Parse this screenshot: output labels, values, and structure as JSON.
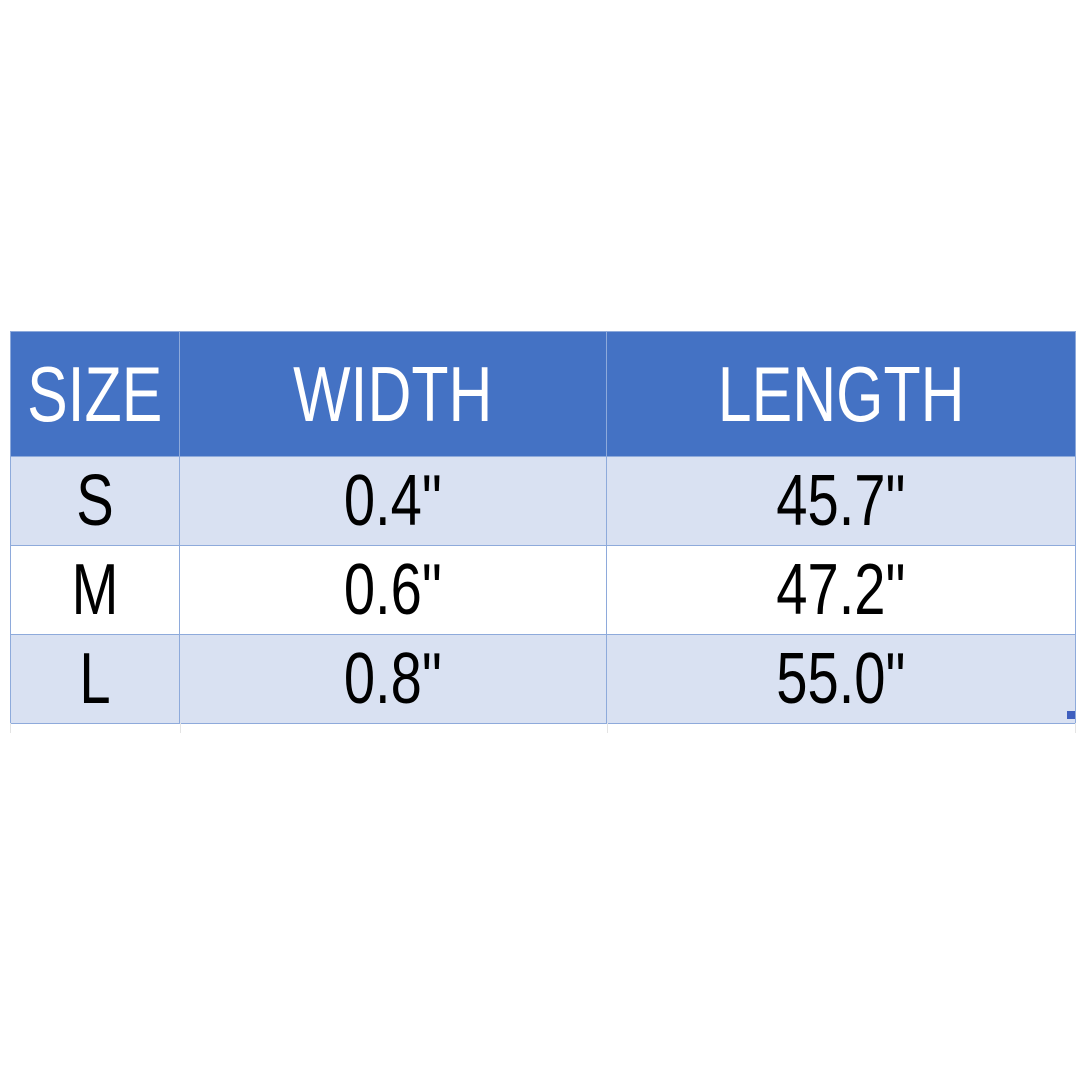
{
  "table": {
    "headers": [
      "SIZE",
      "WIDTH",
      "LENGTH"
    ],
    "rows": [
      [
        "S",
        "0.4\"",
        "45.7\""
      ],
      [
        "M",
        "0.6\"",
        "47.2\""
      ],
      [
        "L",
        "0.8\"",
        "55.0\""
      ]
    ]
  },
  "colors": {
    "header_bg": "#4472c4",
    "band_bg": "#d9e1f2",
    "border": "#8eaadb"
  }
}
